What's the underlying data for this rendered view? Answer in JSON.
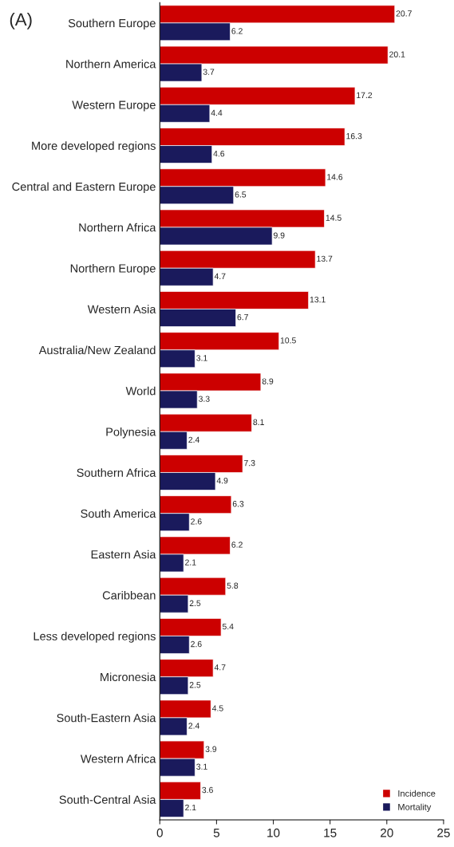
{
  "chart_data": {
    "type": "bar",
    "orientation": "horizontal",
    "annotations": [
      "(A)"
    ],
    "categories": [
      "Southern Europe",
      "Northern America",
      "Western Europe",
      "More developed regions",
      "Central and Eastern Europe",
      "Northern Africa",
      "Northern Europe",
      "Western Asia",
      "Australia/New Zealand",
      "World",
      "Polynesia",
      "Southern Africa",
      "South America",
      "Eastern Asia",
      "Caribbean",
      "Less developed regions",
      "Micronesia",
      "South-Eastern Asia",
      "Western Africa",
      "South-Central Asia"
    ],
    "series": [
      {
        "name": "Incidence",
        "color": "#cc0000",
        "values": [
          20.7,
          20.1,
          17.2,
          16.3,
          14.6,
          14.5,
          13.7,
          13.1,
          10.5,
          8.9,
          8.1,
          7.3,
          6.3,
          6.2,
          5.8,
          5.4,
          4.7,
          4.5,
          3.9,
          3.6
        ]
      },
      {
        "name": "Mortality",
        "color": "#1a1a5c",
        "values": [
          6.2,
          3.7,
          4.4,
          4.6,
          6.5,
          9.9,
          4.7,
          6.7,
          3.1,
          3.3,
          2.4,
          4.9,
          2.6,
          2.1,
          2.5,
          2.6,
          2.5,
          2.4,
          3.1,
          2.1
        ]
      }
    ],
    "xlim": [
      0,
      25
    ],
    "xticks": [
      0,
      5,
      10,
      15,
      20,
      25
    ],
    "data_labels": true,
    "legend": "bottom right",
    "grid": false
  }
}
